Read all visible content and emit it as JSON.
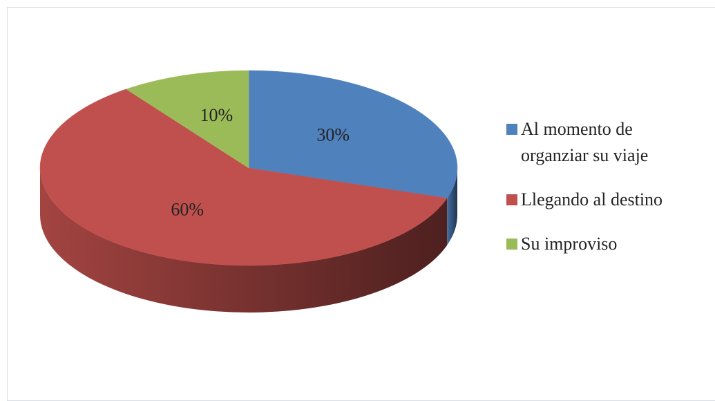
{
  "chart_data": {
    "type": "pie",
    "categories": [
      "Al momento de organziar su viaje",
      "Llegando al destino",
      "Su improviso"
    ],
    "values": [
      30,
      60,
      10
    ],
    "value_labels": [
      "30%",
      "60%",
      "10%"
    ],
    "colors": [
      "#4f81bd",
      "#c0504d",
      "#9bbb59"
    ],
    "legend": "right",
    "three_d": true
  }
}
